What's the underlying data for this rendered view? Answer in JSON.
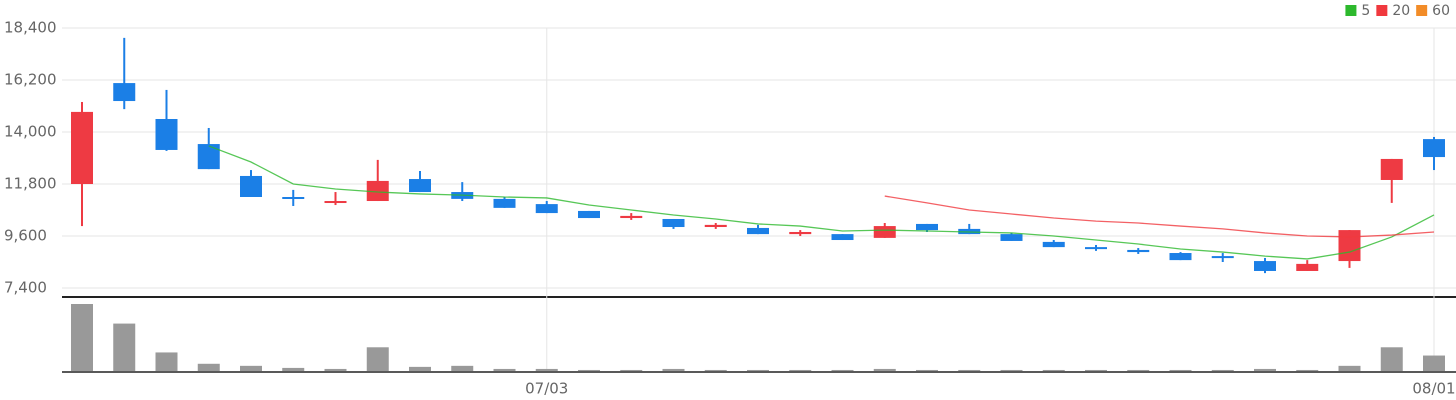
{
  "chart_data": {
    "type": "candlestick",
    "categories": [
      null,
      null,
      null,
      null,
      null,
      null,
      null,
      null,
      null,
      null,
      null,
      "07/03",
      null,
      null,
      null,
      null,
      null,
      null,
      null,
      null,
      null,
      null,
      null,
      null,
      null,
      null,
      null,
      null,
      null,
      null,
      null,
      null,
      "08/01"
    ],
    "open": [
      11800,
      16070,
      14550,
      13490,
      12140,
      11250,
      11000,
      11080,
      12010,
      11460,
      11170,
      10950,
      10660,
      10360,
      10320,
      9980,
      9940,
      9680,
      9680,
      9520,
      10110,
      9900,
      9680,
      9350,
      9130,
      9010,
      8880,
      8750,
      8540,
      8120,
      8540,
      11970,
      13700
    ],
    "close": [
      14850,
      15310,
      13240,
      12430,
      11250,
      11170,
      11080,
      11930,
      11460,
      11170,
      10790,
      10570,
      10360,
      10450,
      9980,
      10070,
      9680,
      9770,
      9430,
      10020,
      9850,
      9680,
      9390,
      9130,
      9050,
      8920,
      8580,
      8670,
      8120,
      8420,
      9850,
      12860,
      12940
    ],
    "high": [
      15270,
      17980,
      15780,
      14170,
      12390,
      11550,
      11460,
      12820,
      12350,
      11880,
      11250,
      11080,
      10660,
      10570,
      10320,
      10150,
      10070,
      9850,
      9680,
      10150,
      10110,
      10110,
      9730,
      9430,
      9220,
      9090,
      8920,
      8880,
      8670,
      8580,
      9850,
      12860,
      13790
    ],
    "low": [
      10020,
      14970,
      13200,
      12430,
      11250,
      10870,
      10910,
      11080,
      11460,
      11080,
      10790,
      10570,
      10360,
      10280,
      9900,
      9900,
      9680,
      9600,
      9430,
      9520,
      9770,
      9680,
      9390,
      9130,
      8970,
      8840,
      8580,
      8500,
      8030,
      8120,
      8250,
      11000,
      12390
    ],
    "up_color": "#ee3a43",
    "down_color": "#1b7fe6",
    "ylim": [
      7400,
      18400
    ],
    "yticks": [
      {
        "value": 7400,
        "label": "7,400"
      },
      {
        "value": 9600,
        "label": "9,600"
      },
      {
        "value": 11800,
        "label": "11,800"
      },
      {
        "value": 14000,
        "label": "14,000"
      },
      {
        "value": 16200,
        "label": "16,200"
      },
      {
        "value": 18400,
        "label": "18,400"
      }
    ],
    "grid": true,
    "series": [
      {
        "name": "5",
        "color": "#2db92d",
        "values": [
          null,
          null,
          null,
          13410,
          12730,
          11800,
          11590,
          11460,
          11380,
          11330,
          11250,
          11210,
          10910,
          10700,
          10490,
          10320,
          10110,
          10020,
          9810,
          9850,
          9810,
          9770,
          9730,
          9600,
          9430,
          9260,
          9050,
          8920,
          8750,
          8630,
          8920,
          9560,
          10490
        ]
      },
      {
        "name": "20",
        "color": "#f0393e",
        "values": [
          null,
          null,
          null,
          null,
          null,
          null,
          null,
          null,
          null,
          null,
          null,
          null,
          null,
          null,
          null,
          null,
          null,
          null,
          null,
          11290,
          11000,
          10700,
          10530,
          10360,
          10230,
          10150,
          10020,
          9900,
          9730,
          9600,
          9560,
          9640,
          9770
        ]
      },
      {
        "name": "60",
        "color": "#f28c28",
        "values": [
          null,
          null,
          null,
          null,
          null,
          null,
          null,
          null,
          null,
          null,
          null,
          null,
          null,
          null,
          null,
          null,
          null,
          null,
          null,
          null,
          null,
          null,
          null,
          null,
          null,
          null,
          null,
          null,
          null,
          null,
          null,
          null,
          null
        ]
      }
    ],
    "volume": {
      "color": "#999999",
      "values": [
        65,
        46,
        18,
        7,
        5,
        3,
        2,
        23,
        4,
        5,
        2,
        2,
        1,
        1,
        2,
        1,
        1,
        1,
        1,
        2,
        1,
        1,
        1,
        1,
        1,
        1,
        1,
        1,
        2,
        1,
        5,
        23,
        15
      ]
    }
  }
}
